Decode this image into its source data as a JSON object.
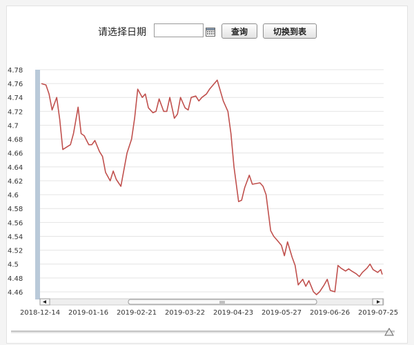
{
  "toolbar": {
    "date_label": "请选择日期",
    "date_value": "",
    "query_button": "查询",
    "switch_button": "切换到表"
  },
  "icons": {
    "calendar": "calendar-icon",
    "scroll_left": "arrow-left-icon",
    "scroll_right": "arrow-right-icon",
    "scroll_grip": "grip-icon",
    "range_handle": "triangle-handle-icon"
  },
  "colors": {
    "line": "#c0504d",
    "grid": "#e4e4e4",
    "left_band": "#b9c9d9"
  },
  "chart_data": {
    "type": "line",
    "ylim": [
      4.45,
      4.78
    ],
    "y_ticks": [
      "4.78",
      "4.76",
      "4.74",
      "4.72",
      "4.7",
      "4.68",
      "4.66",
      "4.64",
      "4.62",
      "4.6",
      "4.58",
      "4.56",
      "4.54",
      "4.52",
      "4.5",
      "4.48",
      "4.46"
    ],
    "x_ticks": [
      "2018-12-14",
      "2019-01-16",
      "2019-02-21",
      "2019-03-22",
      "2019-04-23",
      "2019-05-27",
      "2019-06-26",
      "2019-07-25"
    ],
    "grid": "horizontal",
    "series": [
      {
        "x": [
          "2018-12-14",
          "2018-12-17",
          "2018-12-19",
          "2018-12-21",
          "2018-12-24",
          "2018-12-26",
          "2018-12-28",
          "2019-01-02",
          "2019-01-04",
          "2019-01-07",
          "2019-01-09",
          "2019-01-11",
          "2019-01-14",
          "2019-01-16",
          "2019-01-18",
          "2019-01-21",
          "2019-01-23",
          "2019-01-25",
          "2019-01-28",
          "2019-01-30",
          "2019-02-01",
          "2019-02-04",
          "2019-02-08",
          "2019-02-11",
          "2019-02-13",
          "2019-02-15",
          "2019-02-18",
          "2019-02-20",
          "2019-02-22",
          "2019-02-25",
          "2019-02-27",
          "2019-03-01",
          "2019-03-04",
          "2019-03-06",
          "2019-03-08",
          "2019-03-11",
          "2019-03-13",
          "2019-03-15",
          "2019-03-18",
          "2019-03-20",
          "2019-03-22",
          "2019-03-25",
          "2019-03-27",
          "2019-03-29",
          "2019-04-01",
          "2019-04-03",
          "2019-04-08",
          "2019-04-10",
          "2019-04-12",
          "2019-04-15",
          "2019-04-17",
          "2019-04-19",
          "2019-04-22",
          "2019-04-24",
          "2019-04-26",
          "2019-04-29",
          "2019-05-01",
          "2019-05-06",
          "2019-05-08",
          "2019-05-10",
          "2019-05-13",
          "2019-05-15",
          "2019-05-17",
          "2019-05-20",
          "2019-05-22",
          "2019-05-24",
          "2019-05-27",
          "2019-05-29",
          "2019-05-31",
          "2019-06-03",
          "2019-06-05",
          "2019-06-07",
          "2019-06-10",
          "2019-06-12",
          "2019-06-14",
          "2019-06-17",
          "2019-06-19",
          "2019-06-21",
          "2019-06-24",
          "2019-06-26",
          "2019-06-28",
          "2019-07-01",
          "2019-07-03",
          "2019-07-05",
          "2019-07-08",
          "2019-07-10",
          "2019-07-12",
          "2019-07-15",
          "2019-07-17",
          "2019-07-19",
          "2019-07-22",
          "2019-07-24",
          "2019-07-25"
        ],
        "y": [
          4.76,
          4.758,
          4.745,
          4.722,
          4.74,
          4.708,
          4.665,
          4.672,
          4.688,
          4.726,
          4.688,
          4.685,
          4.672,
          4.672,
          4.678,
          4.662,
          4.655,
          4.632,
          4.62,
          4.634,
          4.622,
          4.612,
          4.66,
          4.68,
          4.71,
          4.752,
          4.74,
          4.745,
          4.725,
          4.718,
          4.72,
          4.738,
          4.72,
          4.72,
          4.74,
          4.71,
          4.716,
          4.74,
          4.725,
          4.722,
          4.74,
          4.742,
          4.735,
          4.74,
          4.745,
          4.752,
          4.765,
          4.75,
          4.735,
          4.72,
          4.688,
          4.64,
          4.59,
          4.592,
          4.61,
          4.628,
          4.615,
          4.617,
          4.612,
          4.6,
          4.548,
          4.54,
          4.535,
          4.527,
          4.512,
          4.532,
          4.51,
          4.498,
          4.47,
          4.478,
          4.468,
          4.476,
          4.46,
          4.456,
          4.46,
          4.47,
          4.478,
          4.462,
          4.46,
          4.498,
          4.494,
          4.49,
          4.493,
          4.49,
          4.486,
          4.482,
          4.488,
          4.494,
          4.5,
          4.492,
          4.488,
          4.492,
          4.485
        ]
      }
    ]
  }
}
